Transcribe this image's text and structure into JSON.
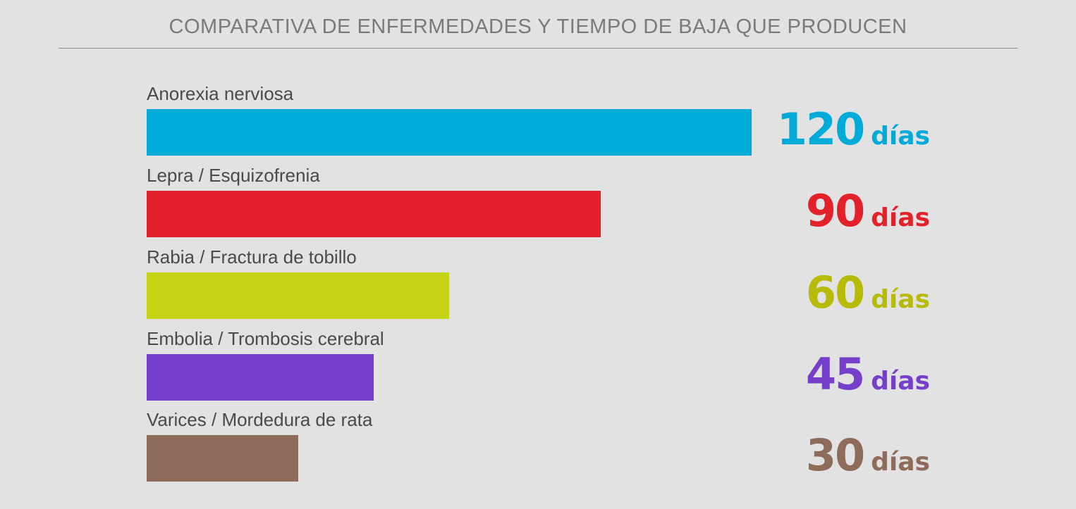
{
  "chart_data": {
    "type": "bar",
    "orientation": "horizontal",
    "title": "COMPARATIVA DE ENFERMEDADES Y TIEMPO DE BAJA QUE PRODUCEN",
    "unit": "días",
    "categories": [
      "Anorexia nerviosa",
      "Lepra / Esquizofrenia",
      "Rabia / Fractura de tobillo",
      "Embolia / Trombosis cerebral",
      "Varices / Mordedura de rata"
    ],
    "values": [
      120,
      90,
      60,
      45,
      30
    ],
    "colors": [
      "#00aad9",
      "#e3212a",
      "#c6d415",
      "#763fcb",
      "#8e6b5a"
    ],
    "value_text_colors": [
      "#00aad9",
      "#e3212a",
      "#b8bb05",
      "#763fcb",
      "#8e6b5a"
    ],
    "xlim": [
      0,
      120
    ],
    "grid": false,
    "legend": "none"
  }
}
